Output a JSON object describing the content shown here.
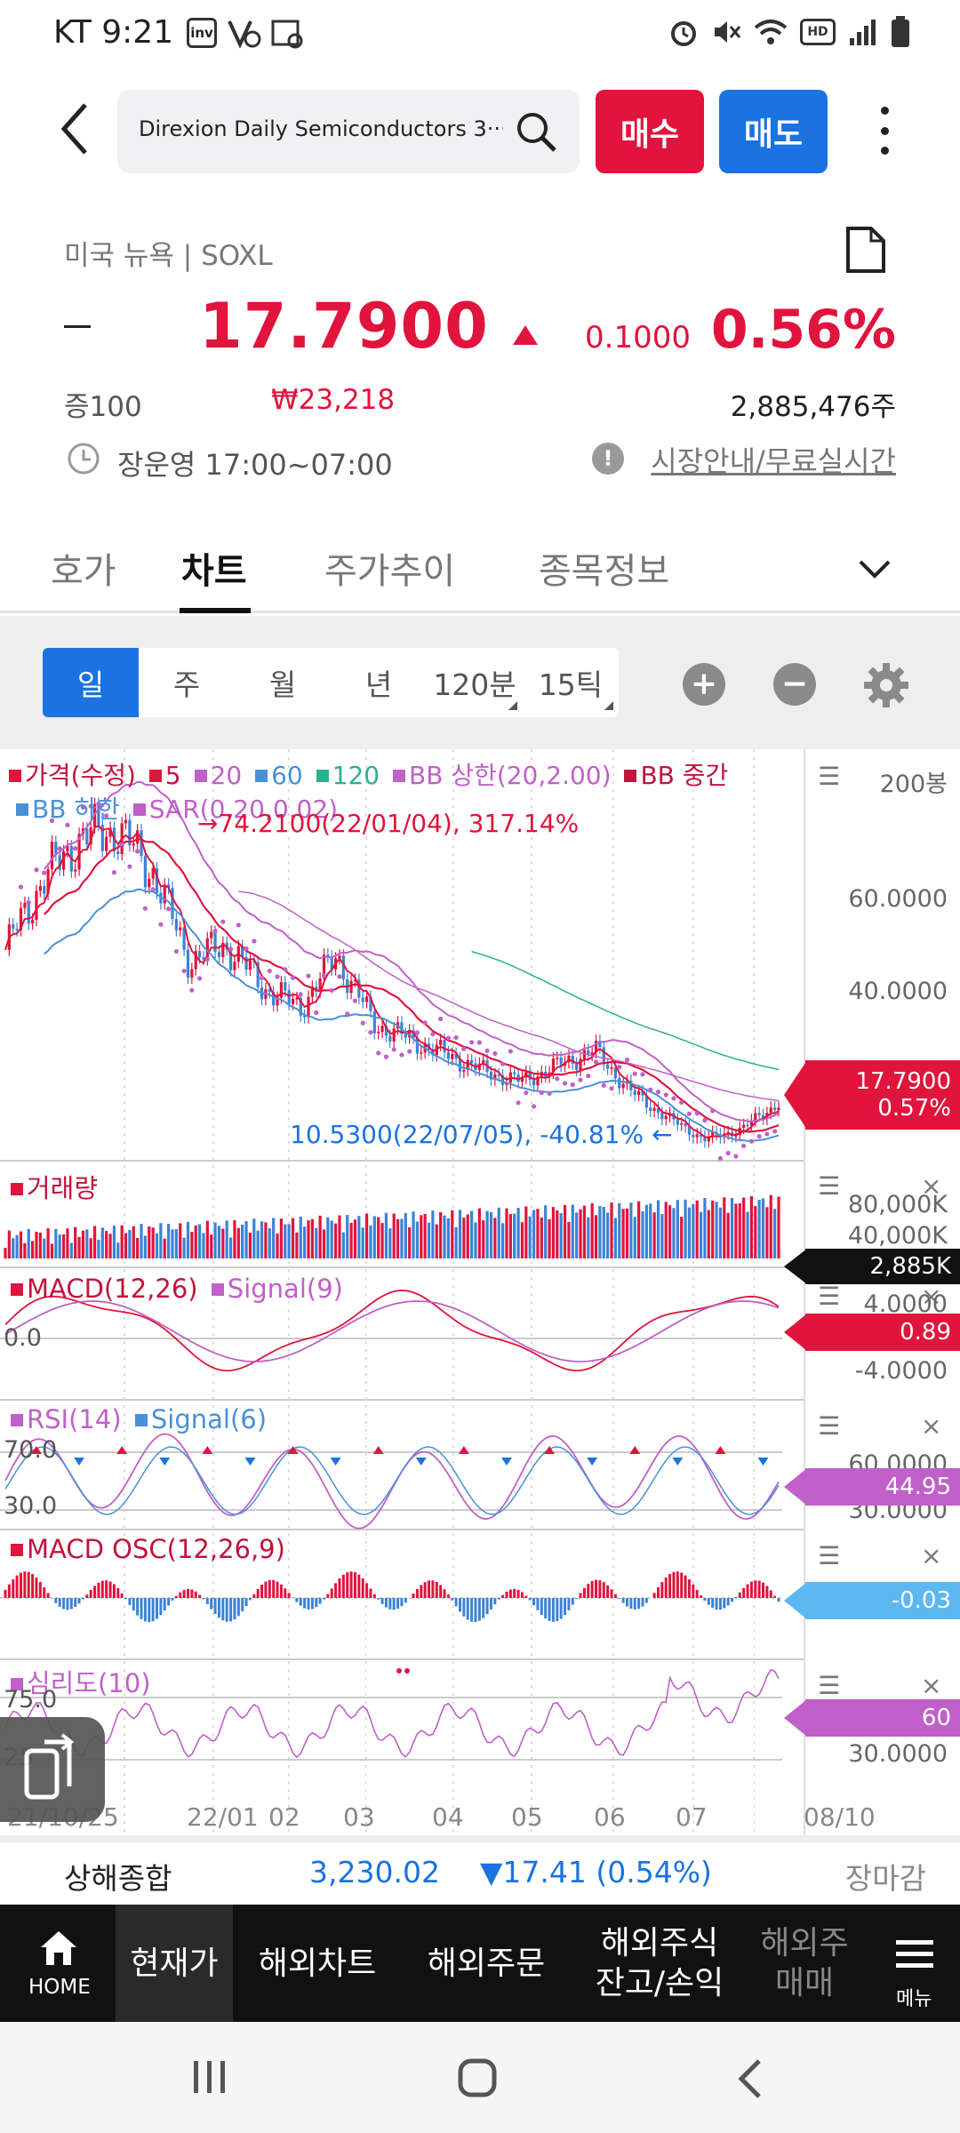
{
  "status_bar": {
    "carrier": "KT",
    "time": "9:21",
    "hd_label": "HD"
  },
  "top_bar": {
    "search_text": "Direxion Daily Semiconductors 3···",
    "buy_label": "매수",
    "sell_label": "매도"
  },
  "quote": {
    "market": "미국 뉴욕 | SOXL",
    "price": "17.7900",
    "change": "0.1000",
    "change_pct": "0.56%",
    "lot": "증100",
    "krw_price": "₩23,218",
    "volume": "2,885,476주",
    "trading_hours": "장운영 17:00~07:00",
    "market_link": "시장안내/무료실시간"
  },
  "tabs": [
    "호가",
    "차트",
    "주가추이",
    "종목정보"
  ],
  "chart_toolbar": {
    "periods": [
      "일",
      "주",
      "월",
      "년",
      "120분",
      "15틱"
    ],
    "zoom_in": "+",
    "zoom_out": "−"
  },
  "chart": {
    "bars_label": "200봉",
    "legend_line1": [
      "가격(수정)",
      "5",
      "20",
      "60",
      "120",
      "BB 상한(20,2.00)",
      "BB 중간"
    ],
    "legend_line2": [
      "BB 하한",
      "SAR(0.20,0.02)"
    ],
    "high_annotation": "74.2100(22/01/04), 317.14%",
    "low_annotation": "10.5300(22/07/05), -40.81%",
    "price_axis": [
      "60.0000",
      "40.0000"
    ],
    "price_tag": "17.7900",
    "price_tag_pct": "0.57%",
    "volume_title": "거래량",
    "volume_axis": [
      "80,000K",
      "40,000K"
    ],
    "volume_tag": "2,885K",
    "macd_title": "MACD(12,26)",
    "macd_signal": "Signal(9)",
    "macd_left": "0.0",
    "macd_axis": [
      "4.0000",
      "-4.0000"
    ],
    "macd_tag": "0.89",
    "rsi_title": "RSI(14)",
    "rsi_signal": "Signal(6)",
    "rsi_left": [
      "70.0",
      "30.0"
    ],
    "rsi_axis": [
      "60.0000",
      "30.0000"
    ],
    "rsi_tag": "44.95",
    "osc_title": "MACD OSC(12,26,9)",
    "osc_tag": "-0.03",
    "psy_title": "심리도(10)",
    "psy_left": [
      "75.0",
      "25"
    ],
    "psy_axis": [
      "30.0000"
    ],
    "psy_tag": "60",
    "x_labels": [
      "21/10/25",
      "22/01",
      "02",
      "03",
      "04",
      "05",
      "06",
      "07",
      "08/10"
    ],
    "colors": {
      "up": "#e0143c",
      "down": "#3b82d6",
      "ma20": "#c060c8",
      "ma60": "#4a90d9",
      "ma120": "#2bb08f"
    }
  },
  "chart_data": {
    "type": "line",
    "title": "",
    "x_range": [
      "21/10/25",
      "22/08/10"
    ],
    "high": {
      "value": 74.21,
      "date": "22/01/04",
      "pct": 317.14
    },
    "low": {
      "value": 10.53,
      "date": "22/07/05",
      "pct": -40.81
    },
    "series": [
      {
        "name": "가격(수정)",
        "values": [
          47,
          60,
          68,
          70,
          62,
          45,
          48,
          40,
          36,
          46,
          33,
          30,
          27,
          24,
          22,
          25,
          28,
          20,
          15,
          11,
          13,
          18
        ]
      }
    ],
    "ylim": [
      10,
      75
    ]
  },
  "index_bar": {
    "name": "상해종합",
    "value": "3,230.02",
    "change": "17.41 (0.54%)",
    "status": "장마감"
  },
  "bottom_nav": {
    "home": "HOME",
    "items": [
      "현재가",
      "해외차트",
      "해외주문",
      "해외주식\n잔고/손익",
      "해외주\n매매"
    ],
    "menu": "메뉴"
  }
}
